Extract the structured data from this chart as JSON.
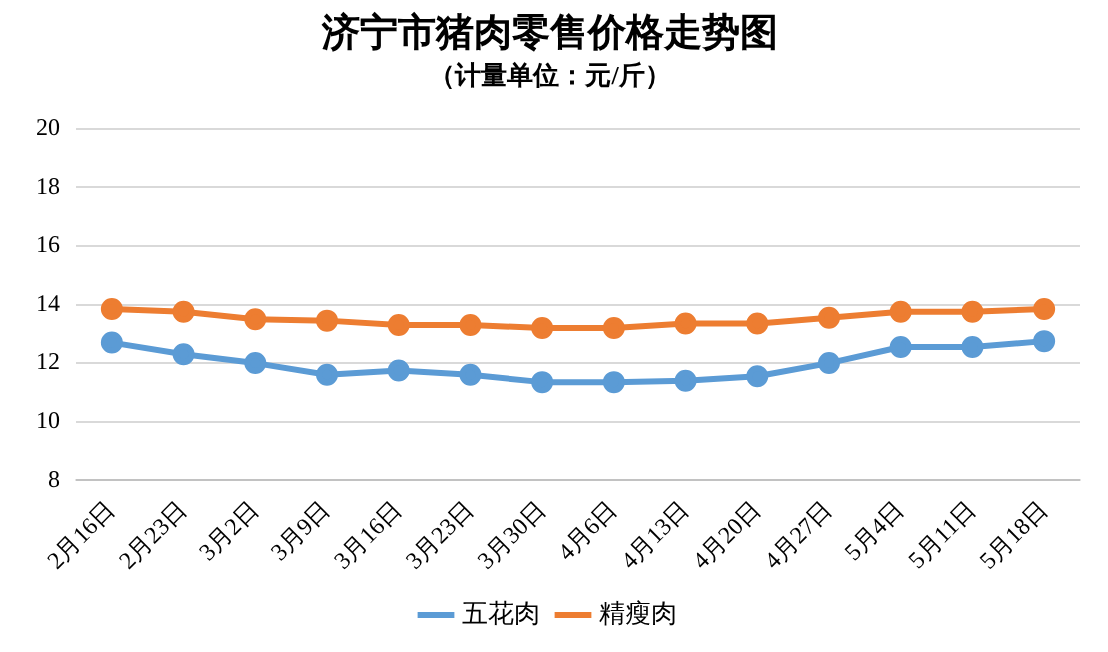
{
  "chart_data": {
    "type": "line",
    "title": "济宁市猪肉零售价格走势图",
    "subtitle": "（计量单位：元/斤）",
    "categories": [
      "2月16日",
      "2月23日",
      "3月2日",
      "3月9日",
      "3月16日",
      "3月23日",
      "3月30日",
      "4月6日",
      "4月13日",
      "4月20日",
      "4月27日",
      "5月4日",
      "5月11日",
      "5月18日"
    ],
    "series": [
      {
        "name": "五花肉",
        "color": "#5b9bd5",
        "values": [
          12.7,
          12.3,
          12.0,
          11.6,
          11.75,
          11.6,
          11.35,
          11.35,
          11.4,
          11.55,
          12.0,
          12.55,
          12.55,
          12.75
        ]
      },
      {
        "name": "精瘦肉",
        "color": "#ed7d31",
        "values": [
          13.85,
          13.75,
          13.5,
          13.45,
          13.3,
          13.3,
          13.2,
          13.2,
          13.35,
          13.35,
          13.55,
          13.75,
          13.75,
          13.85
        ]
      }
    ],
    "ylim": [
      8,
      20
    ],
    "yticks": [
      8,
      10,
      12,
      14,
      16,
      18,
      20
    ],
    "grid": "y",
    "legend": "bottom",
    "marker": "circle",
    "line_style": "solid"
  }
}
